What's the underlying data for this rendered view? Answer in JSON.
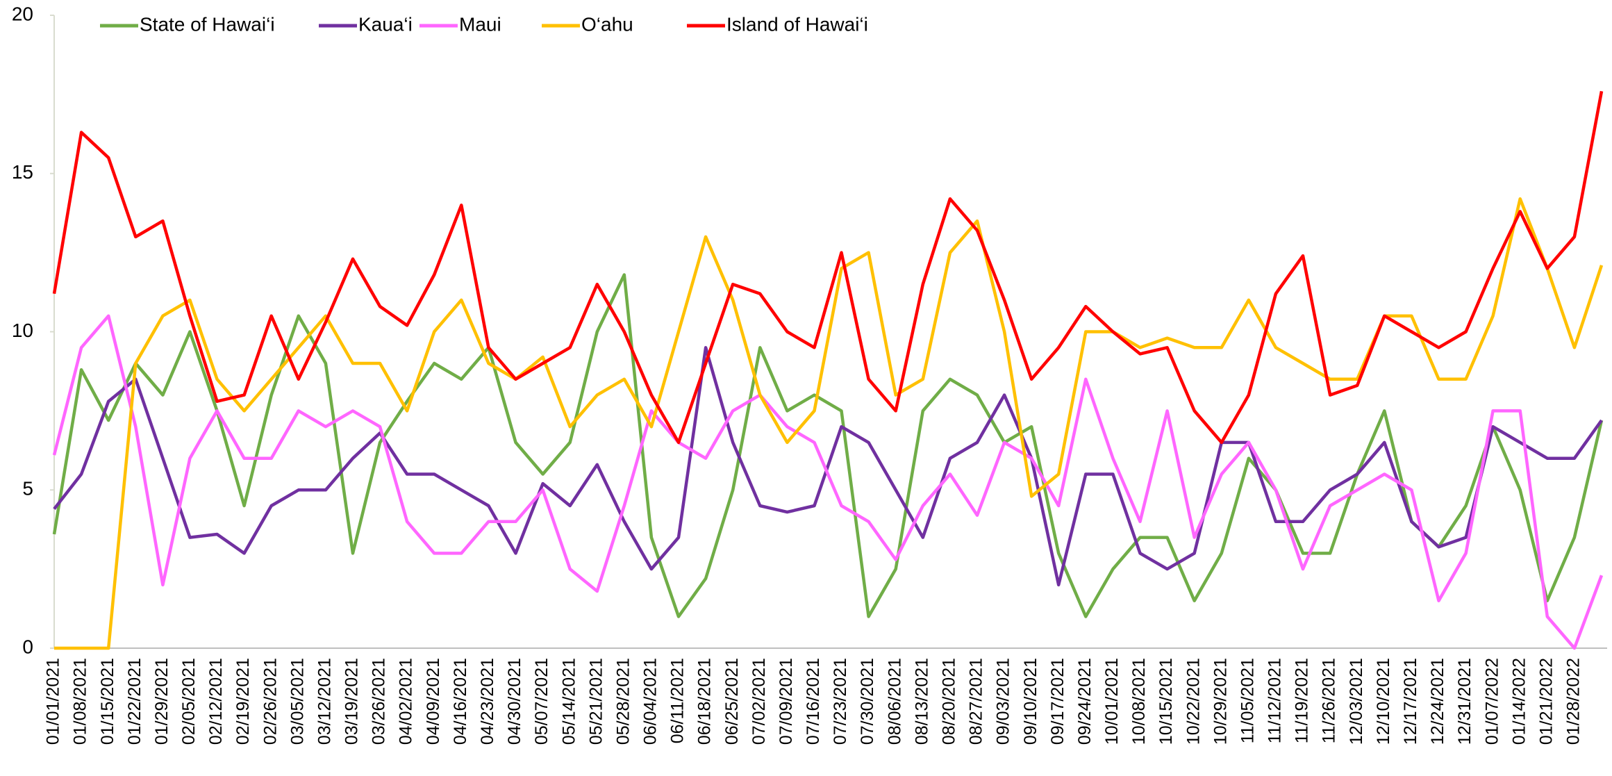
{
  "chart_data": {
    "type": "line",
    "categories": [
      "01/01/2021",
      "01/08/2021",
      "01/15/2021",
      "01/22/2021",
      "01/29/2021",
      "02/05/2021",
      "02/12/2021",
      "02/19/2021",
      "02/26/2021",
      "03/05/2021",
      "03/12/2021",
      "03/19/2021",
      "03/26/2021",
      "04/02/2021",
      "04/09/2021",
      "04/16/2021",
      "04/23/2021",
      "04/30/2021",
      "05/07/2021",
      "05/14/2021",
      "05/21/2021",
      "05/28/2021",
      "06/04/2021",
      "06/11/2021",
      "06/18/2021",
      "06/25/2021",
      "07/02/2021",
      "07/09/2021",
      "07/16/2021",
      "07/23/2021",
      "07/30/2021",
      "08/06/2021",
      "08/13/2021",
      "08/20/2021",
      "08/27/2021",
      "09/03/2021",
      "09/10/2021",
      "09/17/2021",
      "09/24/2021",
      "10/01/2021",
      "10/08/2021",
      "10/15/2021",
      "10/22/2021",
      "10/29/2021",
      "11/05/2021",
      "11/12/2021",
      "11/19/2021",
      "11/26/2021",
      "12/03/2021",
      "12/10/2021",
      "12/17/2021",
      "12/24/2021",
      "12/31/2021",
      "01/07/2022",
      "01/14/2022",
      "01/21/2022",
      "01/28/2022",
      null
    ],
    "series": [
      {
        "name": "State of Hawai‘i",
        "color": "#70ad47",
        "values": [
          3.6,
          8.8,
          7.2,
          9,
          8,
          10,
          7.5,
          4.5,
          8,
          10.5,
          9,
          3,
          6.5,
          7.8,
          9,
          8.5,
          9.5,
          6.5,
          5.5,
          6.5,
          10,
          11.8,
          3.5,
          1,
          2.2,
          5,
          9.5,
          7.5,
          8,
          7.5,
          1,
          2.5,
          7.5,
          8.5,
          8,
          6.5,
          7,
          3,
          1,
          2.5,
          3.5,
          3.5,
          1.5,
          3,
          6,
          5,
          3,
          3,
          5.5,
          7.5,
          4,
          3.2,
          4.5,
          7,
          5,
          1.5,
          3.5,
          7.2
        ]
      },
      {
        "name": "Kaua‘i",
        "color": "#7030a0",
        "values": [
          4.4,
          5.5,
          7.8,
          8.5,
          6,
          3.5,
          3.6,
          3,
          4.5,
          5,
          5,
          6,
          6.8,
          5.5,
          5.5,
          5,
          4.5,
          3,
          5.2,
          4.5,
          5.8,
          4,
          2.5,
          3.5,
          9.5,
          6.5,
          4.5,
          4.3,
          4.5,
          7,
          6.5,
          5,
          3.5,
          6,
          6.5,
          8,
          6,
          2,
          5.5,
          5.5,
          3,
          2.5,
          3,
          6.5,
          6.5,
          4,
          4,
          5,
          5.5,
          6.5,
          4,
          3.2,
          3.5,
          7,
          6.5,
          6,
          6,
          7.2
        ]
      },
      {
        "name": "Maui",
        "color": "#ff66ff",
        "values": [
          6.1,
          9.5,
          10.5,
          7,
          2,
          6,
          7.5,
          6,
          6,
          7.5,
          7,
          7.5,
          7,
          4,
          3,
          3,
          4,
          4,
          5,
          2.5,
          1.8,
          4.5,
          7.5,
          6.5,
          6,
          7.5,
          8,
          7,
          6.5,
          4.5,
          4,
          2.8,
          4.5,
          5.5,
          4.2,
          6.5,
          6,
          4.5,
          8.5,
          6,
          4,
          7.5,
          3.5,
          5.5,
          6.5,
          5,
          2.5,
          4.5,
          5,
          5.5,
          5,
          1.5,
          3,
          7.5,
          7.5,
          1,
          0,
          2.3
        ]
      },
      {
        "name": "O‘ahu",
        "color": "#ffc000",
        "values": [
          0,
          0,
          0,
          9,
          10.5,
          11,
          8.5,
          7.5,
          8.5,
          9.5,
          10.5,
          9,
          9,
          7.5,
          10,
          11,
          9,
          8.5,
          9.2,
          7,
          8,
          8.5,
          7,
          10,
          13,
          11,
          8,
          6.5,
          7.5,
          12,
          12.5,
          8,
          8.5,
          12.5,
          13.5,
          10,
          4.8,
          5.5,
          10,
          10,
          9.5,
          9.8,
          9.5,
          9.5,
          11,
          9.5,
          9,
          8.5,
          8.5,
          10.5,
          10.5,
          8.5,
          8.5,
          10.5,
          14.2,
          12,
          9.5,
          12.1
        ]
      },
      {
        "name": "Island of Hawai‘i",
        "color": "#ff0000",
        "values": [
          11.2,
          16.3,
          15.5,
          13,
          13.5,
          10.5,
          7.8,
          8,
          10.5,
          8.5,
          10.3,
          12.3,
          10.8,
          10.2,
          11.8,
          14,
          9.5,
          8.5,
          9,
          9.5,
          11.5,
          10,
          8,
          6.5,
          9,
          11.5,
          11.2,
          10,
          9.5,
          12.5,
          8.5,
          7.5,
          11.5,
          14.2,
          13.2,
          11,
          8.5,
          9.5,
          10.8,
          10,
          9.3,
          9.5,
          7.5,
          6.5,
          8,
          11.2,
          12.4,
          8,
          8.3,
          10.5,
          10,
          9.5,
          10,
          12,
          13.8,
          12,
          13,
          17.6
        ]
      }
    ],
    "ylim": [
      0,
      20
    ],
    "yticks": [
      0,
      5,
      10,
      15,
      20
    ],
    "grid": false,
    "legend": "top"
  }
}
